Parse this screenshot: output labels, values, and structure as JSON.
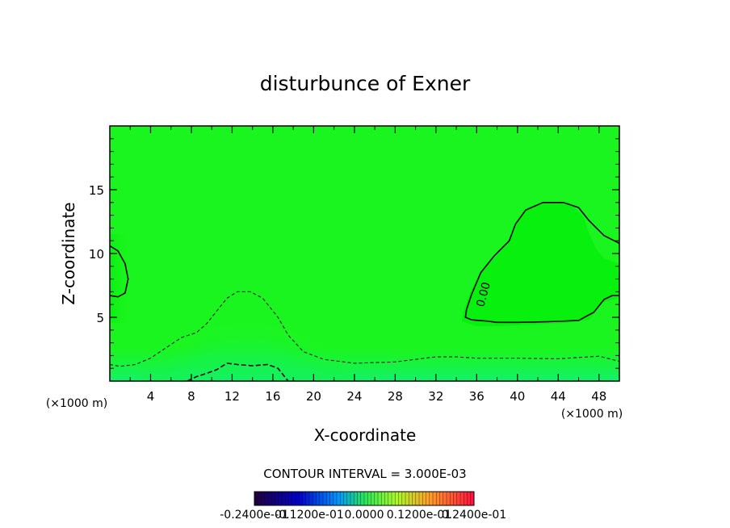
{
  "chart_data": {
    "type": "heatmap",
    "title": "disturbunce of Exner",
    "xlabel": "X-coordinate",
    "ylabel": "Z-coordinate",
    "x_unit": "(×1000 m)",
    "z_unit": "(×1000 m)",
    "xlim": [
      0,
      50
    ],
    "ylim": [
      0,
      20
    ],
    "x_ticks": [
      "4",
      "8",
      "12",
      "16",
      "20",
      "24",
      "28",
      "32",
      "36",
      "40",
      "44",
      "48"
    ],
    "y_ticks": [
      "5",
      "10",
      "15"
    ],
    "contour_interval_label": "CONTOUR INTERVAL = 3.000E-03",
    "contour_label": "0.00",
    "colorbar_labels": [
      "-0.2400e-01",
      "-0.1200e-01",
      "0.0000",
      "0.1200e-01",
      "0.2400e-01"
    ],
    "colorbar_range": [
      -0.024,
      0.024
    ],
    "contours": [
      {
        "level": 0.0,
        "style": "solid",
        "points": [
          [
            0,
            10.6
          ],
          [
            0.8,
            10.2
          ],
          [
            1.5,
            9.2
          ],
          [
            1.8,
            8.0
          ],
          [
            1.5,
            6.9
          ],
          [
            0.8,
            6.6
          ],
          [
            0,
            6.7
          ]
        ]
      },
      {
        "level": 0.0,
        "style": "solid",
        "points": [
          [
            50,
            10.8
          ],
          [
            48.5,
            11.4
          ],
          [
            47,
            12.6
          ],
          [
            46,
            13.6
          ],
          [
            44.5,
            14.0
          ],
          [
            42.5,
            14.0
          ],
          [
            40.8,
            13.4
          ],
          [
            39.8,
            12.3
          ],
          [
            39.2,
            11.0
          ],
          [
            37.7,
            9.8
          ],
          [
            36.4,
            8.5
          ],
          [
            35.5,
            6.8
          ],
          [
            35.0,
            5.6
          ],
          [
            34.9,
            5.0
          ],
          [
            35.5,
            4.8
          ],
          [
            37,
            4.7
          ],
          [
            38,
            4.6
          ],
          [
            40,
            4.6
          ],
          [
            43,
            4.65
          ],
          [
            46,
            4.75
          ],
          [
            47.5,
            5.4
          ],
          [
            48.5,
            6.4
          ],
          [
            49.3,
            6.7
          ],
          [
            50,
            6.7
          ]
        ]
      },
      {
        "level": -0.003,
        "style": "dashed",
        "points": [
          [
            0,
            1.3
          ],
          [
            1,
            1.15
          ],
          [
            2.5,
            1.3
          ],
          [
            4,
            1.8
          ],
          [
            5.5,
            2.6
          ],
          [
            7,
            3.4
          ],
          [
            8.5,
            3.8
          ],
          [
            9.5,
            4.5
          ],
          [
            10.5,
            5.5
          ],
          [
            11.5,
            6.5
          ],
          [
            12.5,
            7.0
          ],
          [
            13.8,
            7.0
          ],
          [
            15,
            6.5
          ],
          [
            16.5,
            5.0
          ],
          [
            17.5,
            3.6
          ],
          [
            19,
            2.3
          ],
          [
            21,
            1.7
          ],
          [
            24,
            1.4
          ],
          [
            28,
            1.5
          ],
          [
            30,
            1.7
          ],
          [
            32,
            1.9
          ],
          [
            34,
            1.9
          ],
          [
            36,
            1.8
          ],
          [
            40,
            1.8
          ],
          [
            44,
            1.75
          ],
          [
            48,
            1.95
          ],
          [
            50,
            1.55
          ]
        ]
      },
      {
        "level": -0.006,
        "style": "dashed",
        "points": [
          [
            7.6,
            0
          ],
          [
            8.5,
            0.35
          ],
          [
            9.5,
            0.6
          ],
          [
            10.5,
            0.9
          ],
          [
            11.5,
            1.4
          ],
          [
            12.5,
            1.3
          ],
          [
            14,
            1.2
          ],
          [
            15.5,
            1.3
          ],
          [
            16.5,
            1.0
          ],
          [
            17.2,
            0.3
          ],
          [
            17.5,
            0
          ]
        ]
      }
    ]
  },
  "colors": {
    "field_base": "#1bf51f",
    "field_right": "#08f00e",
    "field_low": "#12f07a",
    "field_lowest": "#1ef29e",
    "frame": "#000000"
  }
}
